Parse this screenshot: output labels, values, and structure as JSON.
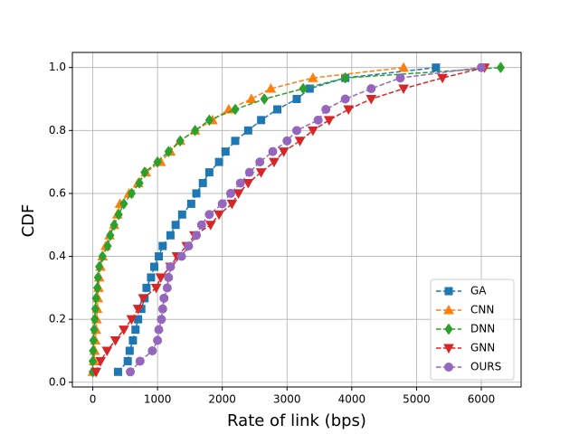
{
  "chart_data": {
    "type": "line",
    "xlabel": "Rate of link (bps)",
    "ylabel": "CDF",
    "xlim": [
      -315,
      6615
    ],
    "ylim": [
      -0.015,
      1.048
    ],
    "xticks": [
      0,
      1000,
      2000,
      3000,
      4000,
      5000,
      6000
    ],
    "yticks": [
      {
        "value": 0,
        "label": "0.0"
      },
      {
        "value": 0.2,
        "label": "0.2"
      },
      {
        "value": 0.4,
        "label": "0.4"
      },
      {
        "value": 0.6,
        "label": "0.6"
      },
      {
        "value": 0.8,
        "label": "0.8"
      },
      {
        "value": 1,
        "label": "1.0"
      }
    ],
    "grid": true,
    "legend": "lower right",
    "series": [
      {
        "name": "GA",
        "color": "#1f77b4",
        "marker": "square",
        "x": [
          390,
          540,
          570,
          620,
          660,
          700,
          750,
          800,
          830,
          900,
          950,
          1020,
          1080,
          1200,
          1280,
          1380,
          1520,
          1600,
          1700,
          1800,
          1950,
          2050,
          2200,
          2400,
          2600,
          2850,
          3150,
          3350,
          3900,
          5300
        ],
        "values": [
          0.033,
          0.067,
          0.1,
          0.133,
          0.167,
          0.2,
          0.233,
          0.267,
          0.3,
          0.333,
          0.367,
          0.4,
          0.433,
          0.467,
          0.5,
          0.533,
          0.567,
          0.6,
          0.633,
          0.667,
          0.7,
          0.733,
          0.767,
          0.8,
          0.833,
          0.867,
          0.9,
          0.933,
          0.967,
          1.0
        ]
      },
      {
        "name": "CNN",
        "color": "#ff7f0e",
        "marker": "triangle-up",
        "x": [
          0,
          20,
          30,
          40,
          50,
          60,
          70,
          80,
          90,
          100,
          120,
          150,
          200,
          260,
          330,
          380,
          420,
          560,
          700,
          820,
          1050,
          1200,
          1350,
          1580,
          1850,
          2100,
          2450,
          2750,
          3400,
          4800
        ],
        "values": [
          0.033,
          0.067,
          0.1,
          0.133,
          0.167,
          0.2,
          0.233,
          0.267,
          0.3,
          0.333,
          0.367,
          0.4,
          0.433,
          0.467,
          0.5,
          0.533,
          0.567,
          0.6,
          0.633,
          0.667,
          0.7,
          0.733,
          0.767,
          0.8,
          0.833,
          0.867,
          0.9,
          0.933,
          0.967,
          1.0
        ]
      },
      {
        "name": "DNN",
        "color": "#2ca02c",
        "marker": "diamond",
        "x": [
          0,
          0,
          5,
          10,
          20,
          30,
          40,
          50,
          70,
          80,
          100,
          150,
          230,
          270,
          330,
          400,
          480,
          600,
          720,
          800,
          1000,
          1170,
          1350,
          1580,
          1800,
          2200,
          2650,
          3250,
          3900,
          6300
        ],
        "values": [
          0.033,
          0.067,
          0.1,
          0.133,
          0.167,
          0.2,
          0.233,
          0.267,
          0.3,
          0.333,
          0.367,
          0.4,
          0.433,
          0.467,
          0.5,
          0.533,
          0.567,
          0.6,
          0.633,
          0.667,
          0.7,
          0.733,
          0.767,
          0.8,
          0.833,
          0.867,
          0.9,
          0.933,
          0.967,
          1.0
        ]
      },
      {
        "name": "GNN",
        "color": "#d62728",
        "marker": "triangle-down",
        "x": [
          50,
          120,
          220,
          350,
          480,
          600,
          700,
          780,
          980,
          1050,
          1200,
          1300,
          1450,
          1570,
          1820,
          1950,
          2150,
          2250,
          2400,
          2600,
          2800,
          2950,
          3200,
          3400,
          3650,
          3950,
          4300,
          4800,
          5400,
          6050
        ],
        "values": [
          0.033,
          0.067,
          0.1,
          0.133,
          0.167,
          0.2,
          0.233,
          0.267,
          0.3,
          0.333,
          0.367,
          0.4,
          0.433,
          0.467,
          0.5,
          0.533,
          0.567,
          0.6,
          0.633,
          0.667,
          0.7,
          0.733,
          0.767,
          0.8,
          0.833,
          0.867,
          0.9,
          0.933,
          0.967,
          1.0
        ]
      },
      {
        "name": "OURS",
        "color": "#9467bd",
        "marker": "circle",
        "x": [
          580,
          730,
          920,
          1000,
          1020,
          1060,
          1080,
          1100,
          1150,
          1170,
          1200,
          1370,
          1480,
          1600,
          1680,
          1800,
          2000,
          2130,
          2280,
          2420,
          2580,
          2780,
          3000,
          3150,
          3480,
          3600,
          3900,
          4300,
          4750,
          6000
        ],
        "values": [
          0.033,
          0.067,
          0.1,
          0.133,
          0.167,
          0.2,
          0.233,
          0.267,
          0.3,
          0.333,
          0.367,
          0.4,
          0.433,
          0.467,
          0.5,
          0.533,
          0.567,
          0.6,
          0.633,
          0.667,
          0.7,
          0.733,
          0.767,
          0.8,
          0.833,
          0.867,
          0.9,
          0.933,
          0.967,
          1.0
        ]
      }
    ]
  }
}
